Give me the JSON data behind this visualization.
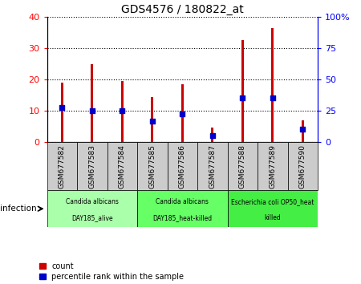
{
  "title": "GDS4576 / 180822_at",
  "samples": [
    "GSM677582",
    "GSM677583",
    "GSM677584",
    "GSM677585",
    "GSM677586",
    "GSM677587",
    "GSM677588",
    "GSM677589",
    "GSM677590"
  ],
  "counts": [
    19,
    25,
    19.5,
    14.5,
    18.5,
    4.5,
    32.5,
    36.5,
    7
  ],
  "percentile_ranks": [
    27.5,
    25,
    25,
    17,
    22.5,
    5,
    35,
    35,
    10
  ],
  "ylim_left": [
    0,
    40
  ],
  "ylim_right": [
    0,
    100
  ],
  "yticks_left": [
    0,
    10,
    20,
    30,
    40
  ],
  "yticks_right": [
    0,
    25,
    50,
    75,
    100
  ],
  "bar_color": "#cc0000",
  "dot_color": "#0000cc",
  "groups": [
    {
      "label": "Candida albicans\nDAY185_alive",
      "start": 0,
      "end": 3,
      "color": "#aaffaa"
    },
    {
      "label": "Candida albicans\nDAY185_heat-killed",
      "start": 3,
      "end": 6,
      "color": "#66ff66"
    },
    {
      "label": "Escherichia coli OP50_heat\nkilled",
      "start": 6,
      "end": 9,
      "color": "#44ee44"
    }
  ],
  "infection_label": "infection",
  "legend_count": "count",
  "legend_percentile": "percentile rank within the sample",
  "bar_width": 0.08,
  "dot_size": 18,
  "sample_box_color": "#cccccc",
  "fig_bg": "#ffffff"
}
